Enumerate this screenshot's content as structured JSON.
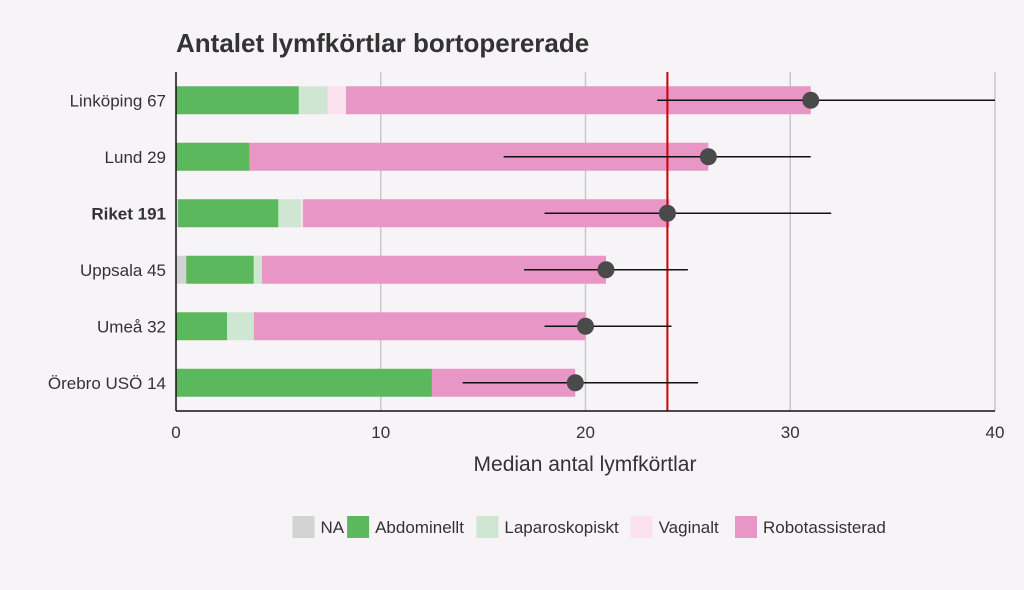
{
  "chart_data": {
    "type": "bar",
    "title": "Antalet lymfkörtlar bortopererade",
    "xlabel": "Median antal lymfkörtlar",
    "ylabel": "",
    "xlim": [
      0,
      40
    ],
    "xticks": [
      0,
      10,
      20,
      30,
      40
    ],
    "grid": true,
    "legend_position": "bottom",
    "reference_line": {
      "value": 24,
      "color": "#cc0000"
    },
    "categories": [
      "Linköping 67",
      "Lund 29",
      "Riket 191",
      "Uppsala 45",
      "Umeå 32",
      "Örebro USÖ 14"
    ],
    "bold_categories": [
      "Riket 191"
    ],
    "series": [
      {
        "name": "NA",
        "color": "#d3d3d3",
        "values": [
          0,
          0,
          0.1,
          0.5,
          0,
          0
        ]
      },
      {
        "name": "Abdominellt",
        "color": "#5cb85c",
        "values": [
          6.0,
          3.6,
          4.9,
          3.3,
          2.5,
          12.5
        ]
      },
      {
        "name": "Laparoskopiskt",
        "color": "#cfe7d2",
        "values": [
          1.4,
          0,
          1.1,
          0.4,
          1.3,
          0
        ]
      },
      {
        "name": "Vaginalt",
        "color": "#fce1ef",
        "values": [
          0.9,
          0,
          0.1,
          0,
          0,
          0
        ]
      },
      {
        "name": "Robotassisterad",
        "color": "#e896c5",
        "values": [
          22.7,
          22.4,
          17.9,
          16.8,
          16.2,
          7.0
        ]
      }
    ],
    "medians": [
      31,
      26,
      24,
      21,
      20,
      19.5
    ],
    "intervals": [
      [
        23.5,
        40
      ],
      [
        16,
        31
      ],
      [
        18,
        32
      ],
      [
        17,
        25
      ],
      [
        18,
        24.2
      ],
      [
        14,
        25.5
      ]
    ]
  }
}
